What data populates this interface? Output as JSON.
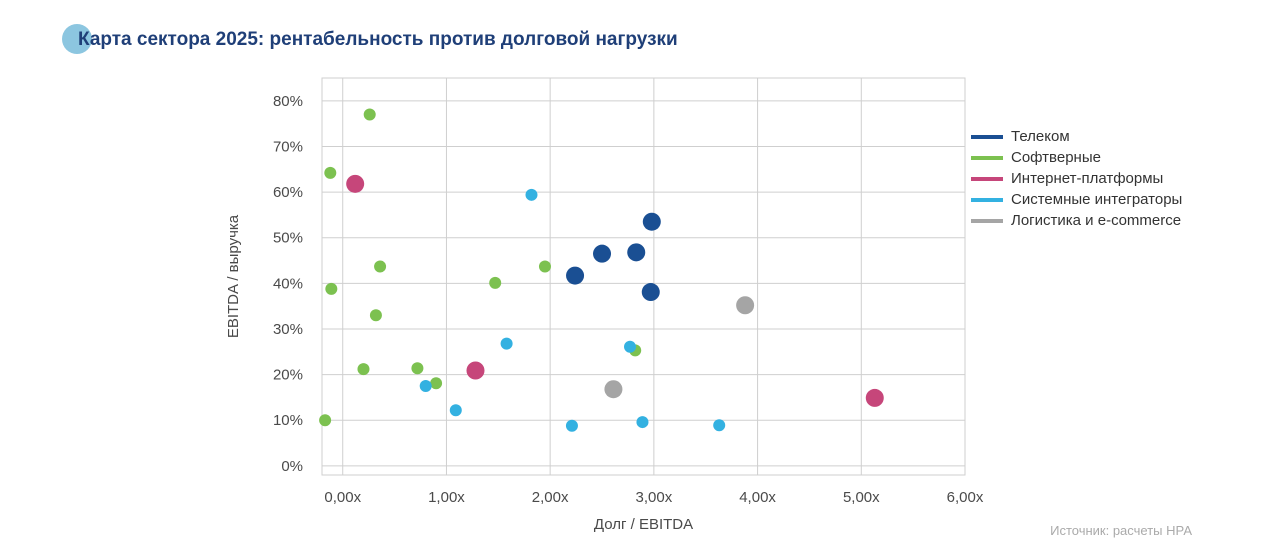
{
  "chart_data": {
    "type": "scatter",
    "title": "Карта сектора 2025: рентабельность против долговой нагрузки",
    "xlabel": "Долг / EBITDA",
    "ylabel": "EBITDA / выручка",
    "xlim": [
      -0.2,
      6.0
    ],
    "ylim": [
      -0.02,
      0.85
    ],
    "x_ticks": [
      0,
      1,
      2,
      3,
      4,
      5,
      6
    ],
    "x_tick_labels": [
      "0,00x",
      "1,00x",
      "2,00x",
      "3,00x",
      "4,00x",
      "5,00x",
      "6,00x"
    ],
    "y_ticks": [
      0,
      0.1,
      0.2,
      0.3,
      0.4,
      0.5,
      0.6,
      0.7,
      0.8
    ],
    "y_tick_labels": [
      "0%",
      "10%",
      "20%",
      "30%",
      "40%",
      "50%",
      "60%",
      "70%",
      "80%"
    ],
    "grid": true,
    "legend_position": "right",
    "series": [
      {
        "name": "Телеком",
        "color": "#1a4f93",
        "size": "large",
        "points": [
          {
            "x": 2.98,
            "y": 0.535
          },
          {
            "x": 2.5,
            "y": 0.465
          },
          {
            "x": 2.83,
            "y": 0.468
          },
          {
            "x": 2.24,
            "y": 0.417
          },
          {
            "x": 2.97,
            "y": 0.381
          }
        ]
      },
      {
        "name": "Софтверные",
        "color": "#7cc150",
        "size": "small",
        "points": [
          {
            "x": 0.26,
            "y": 0.77
          },
          {
            "x": -0.12,
            "y": 0.642
          },
          {
            "x": 0.36,
            "y": 0.437
          },
          {
            "x": 1.95,
            "y": 0.437
          },
          {
            "x": 1.47,
            "y": 0.401
          },
          {
            "x": -0.11,
            "y": 0.388
          },
          {
            "x": 0.32,
            "y": 0.33
          },
          {
            "x": 2.82,
            "y": 0.253
          },
          {
            "x": 0.2,
            "y": 0.212
          },
          {
            "x": 0.72,
            "y": 0.214
          },
          {
            "x": 0.9,
            "y": 0.181
          },
          {
            "x": -0.17,
            "y": 0.1
          }
        ]
      },
      {
        "name": "Интернет-платформы",
        "color": "#c6467a",
        "size": "large",
        "points": [
          {
            "x": 0.12,
            "y": 0.618
          },
          {
            "x": 1.28,
            "y": 0.209
          },
          {
            "x": 5.13,
            "y": 0.149
          }
        ]
      },
      {
        "name": "Системные интеграторы",
        "color": "#33b1e1",
        "size": "small",
        "points": [
          {
            "x": 1.82,
            "y": 0.594
          },
          {
            "x": 1.58,
            "y": 0.268
          },
          {
            "x": 2.77,
            "y": 0.261
          },
          {
            "x": 0.8,
            "y": 0.175
          },
          {
            "x": 1.09,
            "y": 0.122
          },
          {
            "x": 2.21,
            "y": 0.088
          },
          {
            "x": 2.89,
            "y": 0.096
          },
          {
            "x": 3.63,
            "y": 0.089
          }
        ]
      },
      {
        "name": "Логистика и e-commerce",
        "color": "#a5a5a5",
        "size": "large",
        "points": [
          {
            "x": 3.88,
            "y": 0.352
          },
          {
            "x": 2.61,
            "y": 0.168
          }
        ]
      }
    ],
    "source": "Источник: расчеты НРА"
  }
}
